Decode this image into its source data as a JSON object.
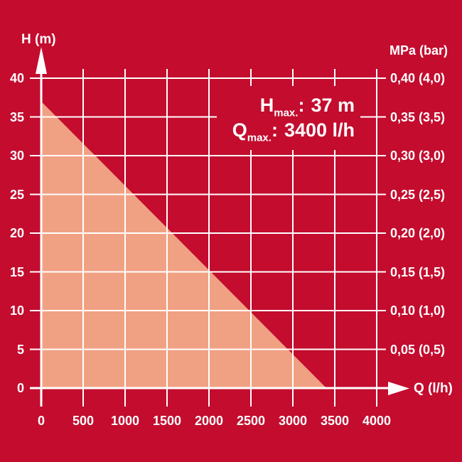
{
  "colors": {
    "background": "#C30C2E",
    "area_fill": "#F0A183",
    "grid": "#FFFFFF",
    "text": "#FFFFFF"
  },
  "axis_titles": {
    "left": "H (m)",
    "right": "MPa (bar)",
    "x": "Q (l/h)"
  },
  "annotation": {
    "line1": {
      "symbol": "H",
      "sub": "max.",
      "colon": ":",
      "value": "37 m"
    },
    "line2": {
      "symbol": "Q",
      "sub": "max.",
      "colon": ":",
      "value": "3400 l/h"
    }
  },
  "chart_data": {
    "type": "area",
    "x_axis": {
      "label": "Q (l/h)",
      "range": [
        0,
        4000
      ],
      "ticks": [
        0,
        500,
        1000,
        1500,
        2000,
        2500,
        3000,
        3500,
        4000
      ]
    },
    "y_axis_left": {
      "label": "H (m)",
      "range": [
        0,
        40
      ],
      "ticks": [
        0,
        5,
        10,
        15,
        20,
        25,
        30,
        35,
        40
      ]
    },
    "y_axis_right": {
      "label": "MPa (bar)",
      "tick_labels": [
        "0,40 (4,0)",
        "0,35 (3,5)",
        "0,30 (3,0)",
        "0,25 (2,5)",
        "0,20 (2,0)",
        "0,15 (1,5)",
        "0,10 (1,0)",
        "0,05 (0,5)"
      ],
      "tick_values_m": [
        40,
        35,
        30,
        25,
        20,
        15,
        10,
        5
      ]
    },
    "series": [
      {
        "name": "pump-operating-range",
        "type": "area",
        "points": [
          {
            "q": 0,
            "h": 37
          },
          {
            "q": 3400,
            "h": 0
          }
        ]
      }
    ],
    "h_max_m": 37,
    "q_max_lh": 3400,
    "grid": true,
    "legend": false
  }
}
